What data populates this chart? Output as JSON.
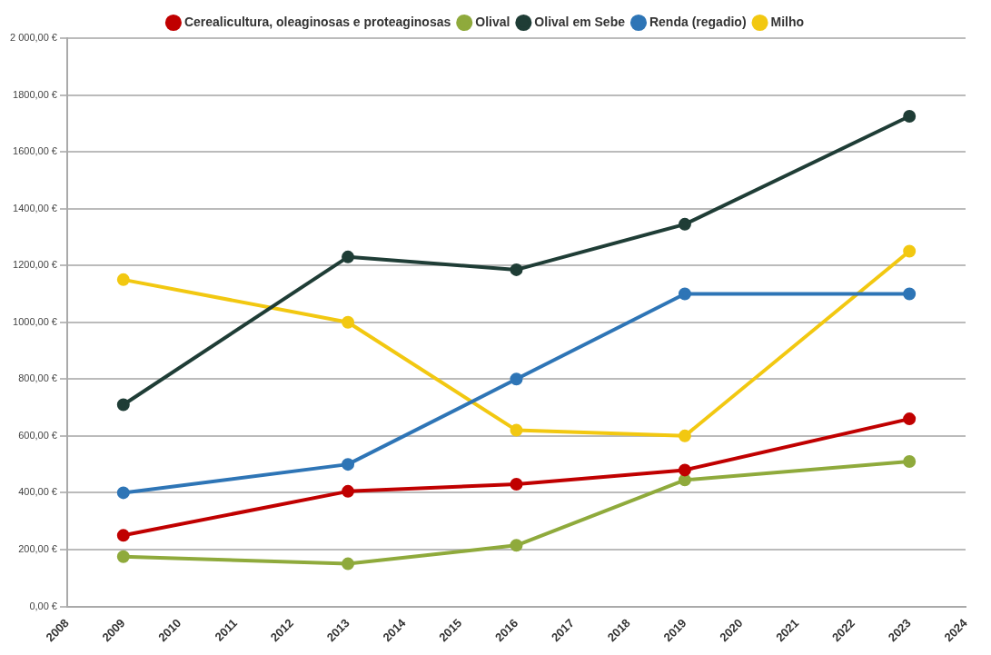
{
  "chart_data": {
    "type": "line",
    "x": [
      2009,
      2013,
      2016,
      2019,
      2023
    ],
    "xlim": [
      2008,
      2024
    ],
    "xticks": [
      2008,
      2009,
      2010,
      2011,
      2012,
      2013,
      2014,
      2015,
      2016,
      2017,
      2018,
      2019,
      2020,
      2021,
      2022,
      2023,
      2024
    ],
    "ylim": [
      0,
      2000
    ],
    "yticks": [
      {
        "value": 0,
        "label": "0,00 €"
      },
      {
        "value": 200,
        "label": "200,00 €"
      },
      {
        "value": 400,
        "label": "400,00 €"
      },
      {
        "value": 600,
        "label": "600,00 €"
      },
      {
        "value": 800,
        "label": "800,00 €"
      },
      {
        "value": 1000,
        "label": "1000,00 €"
      },
      {
        "value": 1200,
        "label": "1200,00 €"
      },
      {
        "value": 1400,
        "label": "1400,00 €"
      },
      {
        "value": 1600,
        "label": "1600,00 €"
      },
      {
        "value": 1800,
        "label": "1800,00 €"
      },
      {
        "value": 2000,
        "label": "2 000,00 €"
      }
    ],
    "grid": "y",
    "legend": "top",
    "marker": "circle",
    "line_style": "solid",
    "series": [
      {
        "name": "Cerealicultura, oleaginosas e proteaginosas",
        "color": "#c00000",
        "values": [
          250,
          405,
          430,
          480,
          660
        ]
      },
      {
        "name": "Olival",
        "color": "#8faa3c",
        "values": [
          175,
          150,
          215,
          445,
          510
        ]
      },
      {
        "name": "Olival em Sebe",
        "color": "#1f3d36",
        "values": [
          710,
          1230,
          1185,
          1345,
          1725
        ]
      },
      {
        "name": "Renda (regadio)",
        "color": "#2e75b6",
        "values": [
          400,
          500,
          800,
          1100,
          1100
        ]
      },
      {
        "name": "Milho",
        "color": "#f2c811",
        "values": [
          1150,
          1000,
          620,
          600,
          1250
        ]
      }
    ]
  }
}
